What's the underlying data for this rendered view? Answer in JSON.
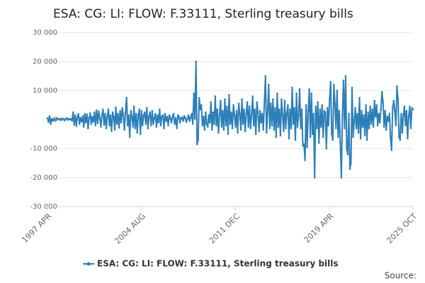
{
  "chart_data": {
    "type": "line",
    "title": "ESA: CG: LI: FLOW: F.33111, Sterling treasury bills",
    "source": "Source:",
    "categories": [
      "1997 APR",
      null,
      null,
      null,
      null,
      null,
      null,
      null,
      null,
      null,
      null,
      null,
      null,
      null,
      null,
      null,
      null,
      null,
      null,
      null,
      null,
      null,
      null,
      null,
      null,
      null,
      null,
      null,
      null,
      null,
      null,
      null,
      null,
      null,
      null,
      null,
      null,
      null,
      null,
      null,
      null,
      null,
      null,
      null,
      null,
      null,
      null,
      null,
      null,
      null,
      null,
      null,
      null,
      null,
      null,
      null,
      null,
      null,
      null,
      null,
      null,
      null,
      null,
      null,
      null,
      null,
      null,
      null,
      null,
      null,
      null,
      null,
      null,
      null,
      null,
      null,
      null,
      null,
      null,
      null,
      null,
      null,
      null,
      null,
      null,
      null,
      null,
      null,
      "2004 AUG",
      null,
      null,
      null,
      null,
      null,
      null,
      null,
      null,
      null,
      null,
      null,
      null,
      null,
      null,
      null,
      null,
      null,
      null,
      null,
      null,
      null,
      null,
      null,
      null,
      null,
      null,
      null,
      null,
      null,
      null,
      null,
      null,
      null,
      null,
      null,
      null,
      null,
      null,
      null,
      null,
      null,
      null,
      null,
      null,
      null,
      null,
      null,
      null,
      null,
      null,
      null,
      null,
      null,
      null,
      null,
      null,
      null,
      null,
      null,
      null,
      null,
      null,
      null,
      null,
      null,
      null,
      null,
      null,
      null,
      null,
      null,
      null,
      null,
      null,
      null,
      null,
      null,
      null,
      null,
      null,
      null,
      null,
      null,
      null,
      null,
      null,
      null,
      "2011 DEC",
      null,
      null,
      null,
      null,
      null,
      null,
      null,
      null,
      null,
      null,
      null,
      null,
      null,
      null,
      null,
      null,
      null,
      null,
      null,
      null,
      null,
      null,
      null,
      null,
      null,
      null,
      null,
      null,
      null,
      null,
      null,
      null,
      null,
      null,
      null,
      null,
      null,
      null,
      null,
      null,
      null,
      null,
      null,
      null,
      null,
      null,
      null,
      null,
      null,
      null,
      null,
      null,
      null,
      null,
      null,
      null,
      null,
      null,
      null,
      null,
      null,
      null,
      null,
      null,
      null,
      null,
      null,
      null,
      null,
      null,
      null,
      null,
      null,
      null,
      null,
      null,
      null,
      null,
      null,
      null,
      null,
      null,
      null,
      null,
      null,
      null,
      null,
      "2019 APR",
      null,
      null,
      null,
      null,
      null,
      null,
      null,
      null,
      null,
      null,
      null,
      null,
      null,
      null,
      null,
      null,
      null,
      null,
      null,
      null,
      null,
      null,
      null,
      null,
      null,
      null,
      null,
      null,
      null,
      null,
      null,
      null,
      null,
      null,
      null,
      null,
      null,
      null,
      null,
      null,
      null,
      null,
      null,
      null,
      null,
      null,
      null,
      null,
      null,
      null,
      null,
      null,
      null,
      null,
      null,
      null,
      null,
      null,
      null,
      null,
      null,
      null,
      null,
      null,
      null,
      null,
      null,
      null,
      null,
      null,
      null,
      null,
      null,
      null,
      null,
      null,
      null,
      "2025 OCT"
    ],
    "series": [
      {
        "name": "ESA: CG: LI: FLOW: F.33111, Sterling treasury bills",
        "color": "#2c7fb8",
        "values": [
          500,
          -800,
          1200,
          -1500,
          300,
          -400,
          200,
          100,
          -300,
          500,
          200,
          -100,
          300,
          -200,
          400,
          100,
          -300,
          200,
          500,
          -100,
          300,
          0,
          200,
          -400,
          2500,
          -1800,
          1500,
          -2200,
          800,
          1900,
          -1500,
          600,
          -700,
          1200,
          -2500,
          2000,
          -1000,
          1800,
          -3000,
          500,
          2200,
          -1500,
          1000,
          -800,
          2500,
          -2000,
          3200,
          -1200,
          2800,
          500,
          -2500,
          1500,
          3500,
          -1800,
          2000,
          -3000,
          1000,
          3500,
          -2000,
          1500,
          -4000,
          2500,
          1000,
          -3500,
          4200,
          -1500,
          2000,
          -2800,
          3000,
          -1000,
          4000,
          1500,
          -3500,
          2500,
          7500,
          -2000,
          1500,
          -6000,
          3000,
          1000,
          -2500,
          4500,
          -3000,
          2000,
          -4500,
          1500,
          3500,
          -5000,
          3000,
          -2000,
          1500,
          2500,
          -1500,
          4000,
          -3000,
          1000,
          2500,
          -2000,
          3000,
          -1500,
          500,
          2000,
          -2500,
          1500,
          -1000,
          3500,
          -2000,
          1000,
          1500,
          -3000,
          2000,
          -500,
          1000,
          -2000,
          1500,
          500,
          -1000,
          1000,
          2000,
          -1500,
          500,
          -3000,
          1500,
          1000,
          -1000,
          500,
          800,
          -500,
          1200,
          500,
          -800,
          300,
          1500,
          -500,
          800,
          2000,
          -1500,
          9000,
          300,
          20000,
          -8500,
          -7000,
          7500,
          3500,
          5000,
          -2000,
          1000,
          -3500,
          2500,
          -1500,
          -2500,
          1500,
          -1000,
          6000,
          -3500,
          2500,
          -1500,
          8000,
          -2000,
          3500,
          -4500,
          1500,
          6500,
          -2500,
          3000,
          -3500,
          7000,
          -2000,
          4500,
          -5000,
          8500,
          -1500,
          2500,
          -3000,
          5000,
          1500,
          -2500,
          3000,
          -4500,
          5500,
          2000,
          -3500,
          7000,
          -1500,
          3500,
          -4000,
          2000,
          6000,
          -2500,
          4500,
          -3000,
          1500,
          8000,
          -2000,
          3500,
          -5000,
          6000,
          2500,
          -4000,
          3000,
          -1000,
          2000,
          -3500,
          6000,
          15000,
          -4500,
          2500,
          12000,
          -3000,
          5500,
          -2000,
          7000,
          -3500,
          4000,
          -6000,
          9000,
          -2500,
          3500,
          -5500,
          7000,
          1500,
          -4000,
          6500,
          -3000,
          2000,
          5000,
          -6500,
          3500,
          -3000,
          11000,
          -1500,
          4000,
          -7000,
          9000,
          -2500,
          1500,
          10500,
          -3000,
          3500,
          -9000,
          -8500,
          -14000,
          5000,
          -9500,
          3000,
          10500,
          -6000,
          9000,
          -5000,
          2000,
          -20000,
          4500,
          -3000,
          6000,
          -8000,
          3500,
          -2500,
          5000,
          -6000,
          3000,
          2500,
          -10000,
          4000,
          -2000,
          7000,
          13000,
          -5000,
          -7000,
          12000,
          5500,
          -3000,
          10000,
          -6000,
          3000,
          -8000,
          -20000,
          1500,
          13500,
          -3000,
          15000,
          -10000,
          -12000,
          2000,
          -17000,
          -15000,
          11000,
          -6000,
          -1000,
          4000,
          -3000,
          2000,
          -4500,
          7500,
          -6500,
          3000,
          -2500,
          1500,
          -5500,
          5000,
          -7000,
          2500,
          -3000,
          4500,
          -1500,
          3500,
          -2500,
          6500,
          1000,
          5000,
          -2000,
          2000,
          -1000,
          3500,
          9500,
          6000,
          -2500,
          3000,
          -3500,
          1000,
          -500,
          2000,
          -6500,
          -10500,
          4000,
          6500,
          3000,
          -2000,
          11500,
          7000,
          -6000,
          -7000,
          2000,
          -4500,
          1500,
          4500,
          -2000,
          3000,
          -6500,
          1000,
          4500,
          -3000,
          4000,
          3500
        ]
      }
    ],
    "ylim": [
      -30000,
      30000
    ],
    "yticks": [
      {
        "value": -30000,
        "label": "-30 000"
      },
      {
        "value": -20000,
        "label": "-20 000"
      },
      {
        "value": -10000,
        "label": "-10 000"
      },
      0,
      {
        "value": 10000,
        "label": "10 000"
      },
      {
        "value": 20000,
        "label": "20 000"
      },
      {
        "value": 30000,
        "label": "30 000"
      }
    ],
    "grid": true,
    "legend": "bottom"
  }
}
